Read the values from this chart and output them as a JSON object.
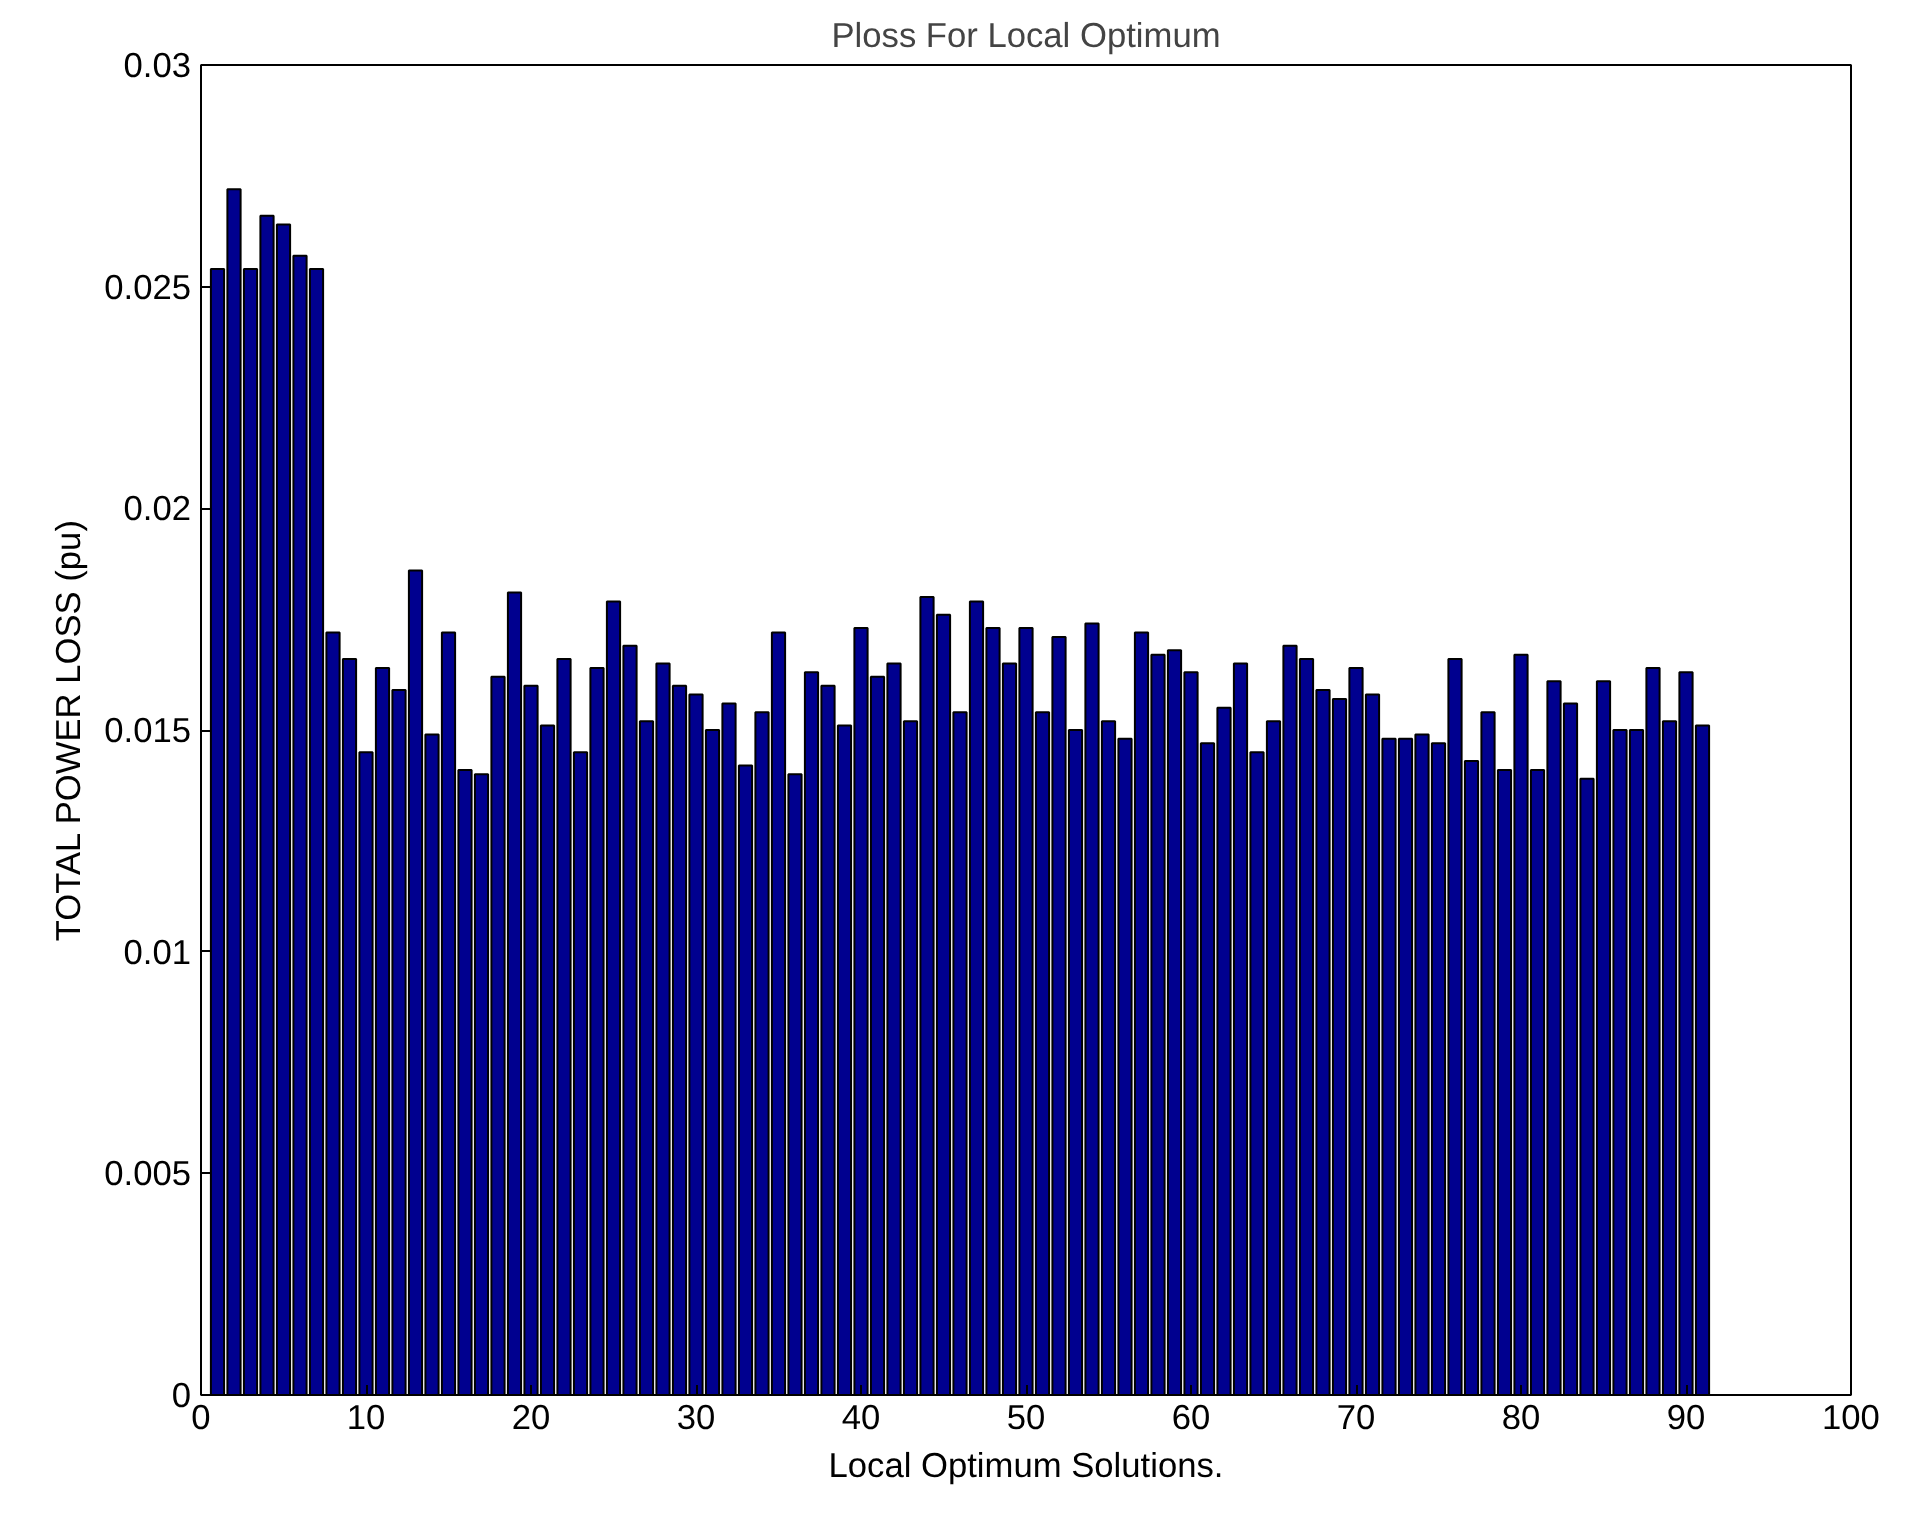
{
  "chart_data": {
    "type": "bar",
    "title": "Ploss For Local Optimum",
    "xlabel": "Local Optimum Solutions.",
    "ylabel": "TOTAL POWER LOSS (pu)",
    "x": [
      1,
      2,
      3,
      4,
      5,
      6,
      7,
      8,
      9,
      10,
      11,
      12,
      13,
      14,
      15,
      16,
      17,
      18,
      19,
      20,
      21,
      22,
      23,
      24,
      25,
      26,
      27,
      28,
      29,
      30,
      31,
      32,
      33,
      34,
      35,
      36,
      37,
      38,
      39,
      40,
      41,
      42,
      43,
      44,
      45,
      46,
      47,
      48,
      49,
      50,
      51,
      52,
      53,
      54,
      55,
      56,
      57,
      58,
      59,
      60,
      61,
      62,
      63,
      64,
      65,
      66,
      67,
      68,
      69,
      70,
      71,
      72,
      73,
      74,
      75,
      76,
      77,
      78,
      79,
      80,
      81,
      82,
      83,
      84,
      85,
      86,
      87,
      88,
      89,
      90,
      91
    ],
    "values": [
      0.0254,
      0.0272,
      0.0254,
      0.0266,
      0.0264,
      0.0257,
      0.0254,
      0.0172,
      0.0166,
      0.0145,
      0.0164,
      0.0159,
      0.0186,
      0.0149,
      0.0172,
      0.0141,
      0.014,
      0.0162,
      0.0181,
      0.016,
      0.0151,
      0.0166,
      0.0145,
      0.0164,
      0.0179,
      0.0169,
      0.0152,
      0.0165,
      0.016,
      0.0158,
      0.015,
      0.0156,
      0.0142,
      0.0154,
      0.0172,
      0.014,
      0.0163,
      0.016,
      0.0151,
      0.0173,
      0.0162,
      0.0165,
      0.0152,
      0.018,
      0.0176,
      0.0154,
      0.0179,
      0.0173,
      0.0165,
      0.0173,
      0.0154,
      0.0171,
      0.015,
      0.0174,
      0.0152,
      0.0148,
      0.0172,
      0.0167,
      0.0168,
      0.0163,
      0.0147,
      0.0155,
      0.0165,
      0.0145,
      0.0152,
      0.0169,
      0.0166,
      0.0159,
      0.0157,
      0.0164,
      0.0158,
      0.0148,
      0.0148,
      0.0149,
      0.0147,
      0.0166,
      0.0143,
      0.0154,
      0.0141,
      0.0167,
      0.0141,
      0.0161,
      0.0156,
      0.0139,
      0.0161,
      0.015,
      0.015,
      0.0164,
      0.0152,
      0.0163,
      0.0151
    ],
    "color": "#00008f",
    "xlim": [
      0,
      100
    ],
    "xticks": [
      0,
      10,
      20,
      30,
      40,
      50,
      60,
      70,
      80,
      90,
      100
    ],
    "ylim": [
      0,
      0.03
    ],
    "yticks": [
      0,
      0.005,
      0.01,
      0.015,
      0.02,
      0.025,
      0.03
    ],
    "grid": false
  }
}
